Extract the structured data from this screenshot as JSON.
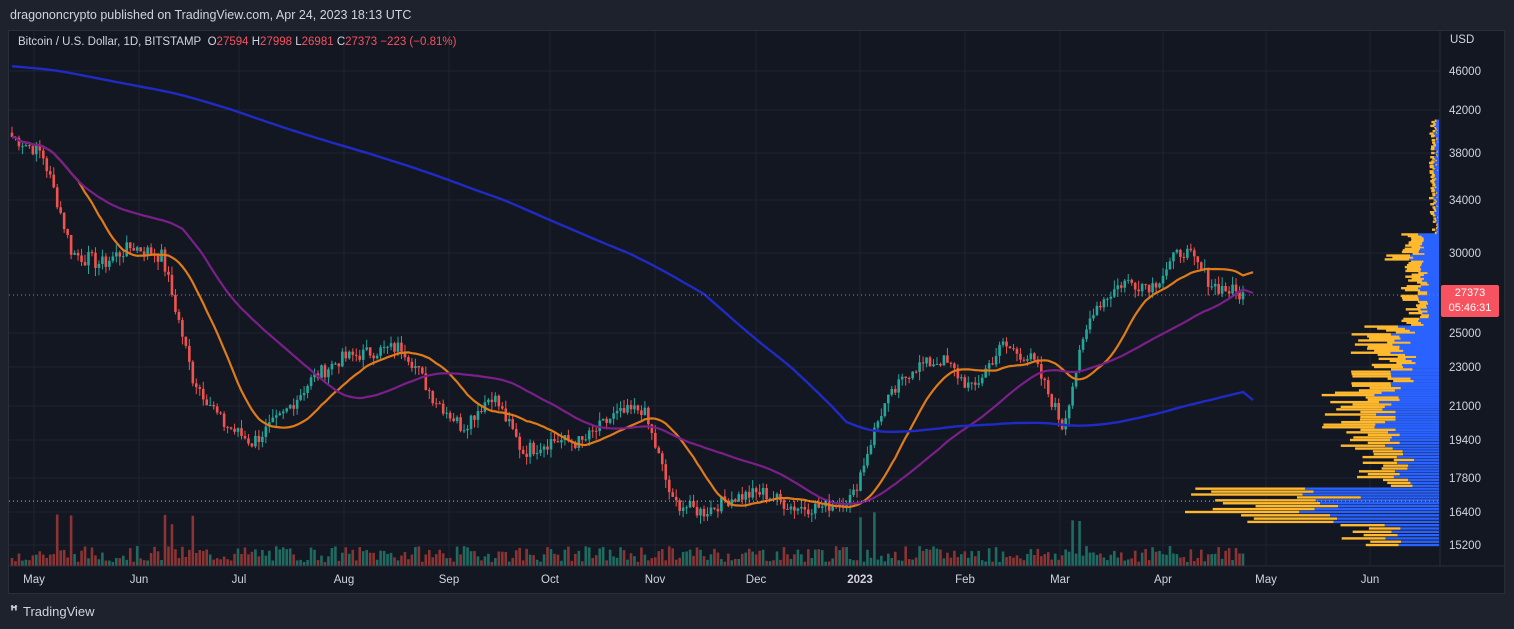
{
  "header": {
    "published": "dragononcrypto published on TradingView.com, Apr 24, 2023 18:13 UTC"
  },
  "legend": {
    "symbol": "Bitcoin / U.S. Dollar, 1D, BITSTAMP",
    "open_label": "O",
    "open": "27594",
    "high_label": "H",
    "high": "27998",
    "low_label": "L",
    "low": "26981",
    "close_label": "C",
    "close": "27373",
    "change": "−223 (−0.81%)"
  },
  "price_tag": {
    "price": "27373",
    "countdown": "05:46:31"
  },
  "footer": {
    "brand": "TradingView"
  },
  "colors": {
    "background": "#131722",
    "up": "#26a69a",
    "down": "#ef5350",
    "ma_short": "#e07b1a",
    "ma_mid": "#7b1f8a",
    "ma_long": "#1f2bc4",
    "vp_up": "#2962ff",
    "vp_down": "#ffb92e",
    "support_line": "#e6c200"
  },
  "chart_data": {
    "type": "candlestick",
    "title": "Bitcoin / U.S. Dollar, 1D, BITSTAMP",
    "currency_label": "USD",
    "y_ticks": [
      46000,
      42000,
      38000,
      34000,
      30000,
      25000,
      23000,
      21000,
      19400,
      17800,
      16400,
      15200
    ],
    "x_ticks": [
      "May",
      "Jun",
      "Jul",
      "Aug",
      "Sep",
      "Oct",
      "Nov",
      "Dec",
      "2023",
      "Feb",
      "Mar",
      "Apr",
      "May",
      "Jun"
    ],
    "close_path": [
      [
        "May",
        39500
      ],
      [
        "May",
        38000
      ],
      [
        "May",
        30000
      ],
      [
        "May",
        29300
      ],
      [
        "Jun",
        30500
      ],
      [
        "Jun",
        29800
      ],
      [
        "Jun",
        22500
      ],
      [
        "Jun",
        20200
      ],
      [
        "Jul",
        19300
      ],
      [
        "Jul",
        20500
      ],
      [
        "Jul",
        22400
      ],
      [
        "Aug",
        23500
      ],
      [
        "Aug",
        23900
      ],
      [
        "Aug",
        24200
      ],
      [
        "Aug",
        21500
      ],
      [
        "Sep",
        20000
      ],
      [
        "Sep",
        21600
      ],
      [
        "Sep",
        18900
      ],
      [
        "Oct",
        19400
      ],
      [
        "Oct",
        19300
      ],
      [
        "Oct",
        20500
      ],
      [
        "Nov",
        20900
      ],
      [
        "Nov",
        16800
      ],
      [
        "Nov",
        16400
      ],
      [
        "Dec",
        17000
      ],
      [
        "Dec",
        17200
      ],
      [
        "Dec",
        16600
      ],
      [
        "2023",
        16600
      ],
      [
        "2023",
        17000
      ],
      [
        "2023",
        20900
      ],
      [
        "2023",
        23000
      ],
      [
        "Feb",
        23400
      ],
      [
        "Feb",
        21800
      ],
      [
        "Feb",
        24300
      ],
      [
        "Mar",
        23400
      ],
      [
        "Mar",
        20000
      ],
      [
        "Mar",
        26500
      ],
      [
        "Mar",
        28200
      ],
      [
        "Apr",
        28000
      ],
      [
        "Apr",
        30300
      ],
      [
        "Apr",
        28000
      ],
      [
        "Apr",
        27373
      ]
    ],
    "moving_averages": [
      {
        "name": "",
        "color": "#e07b1a",
        "end_value": 28800
      },
      {
        "name": "",
        "color": "#7b1f8a",
        "end_value": 27500
      },
      {
        "name": "",
        "color": "#1f2bc4",
        "end_value": 21300
      }
    ],
    "horizontal_levels": [
      {
        "value": 27373,
        "style": "dotted",
        "color": "#f7525f"
      },
      {
        "value": 16850,
        "style": "dotted",
        "color": "#e6c200"
      }
    ],
    "volume_profile": "right-side",
    "grid": true
  }
}
